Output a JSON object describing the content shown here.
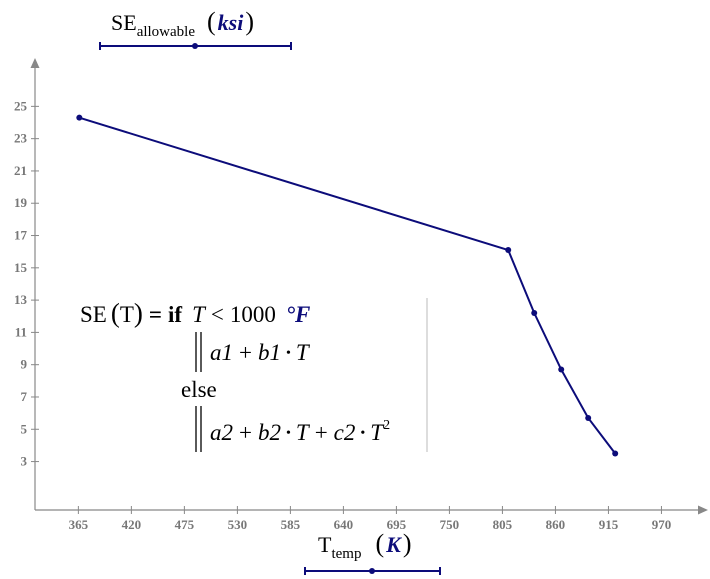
{
  "chart_data": {
    "type": "line",
    "title": {
      "main": "SE",
      "subscript": "allowable",
      "unit": "ksi"
    },
    "xlabel": {
      "main": "T",
      "subscript": "temp",
      "unit": "K"
    },
    "ylabel": "",
    "xlim": [
      320,
      1010
    ],
    "ylim": [
      0,
      27.5
    ],
    "x_ticks": [
      "365",
      "420",
      "475",
      "530",
      "585",
      "640",
      "695",
      "750",
      "805",
      "860",
      "915",
      "970"
    ],
    "y_ticks": [
      "3",
      "5",
      "7",
      "9",
      "11",
      "13",
      "15",
      "17",
      "19",
      "21",
      "23",
      "25"
    ],
    "grid": false,
    "series": [
      {
        "color": "#0c0c7a",
        "x": [
          366,
          811,
          838,
          866,
          894,
          922
        ],
        "y": [
          24.3,
          16.1,
          12.2,
          8.7,
          5.7,
          3.5
        ]
      }
    ],
    "annotation": {
      "lhs": "SE",
      "lhs_arg": "T",
      "equals": "=",
      "kw_if": "if",
      "condition": {
        "var": "T",
        "op": "<",
        "value": "1000",
        "unit": "°F"
      },
      "branch1": [
        "a1",
        "+",
        "b1",
        "•",
        "T"
      ],
      "kw_else": "else",
      "branch2": [
        "a2",
        "+",
        "b2",
        "•",
        "T",
        "+",
        "c2",
        "•",
        "T",
        "2"
      ]
    }
  }
}
